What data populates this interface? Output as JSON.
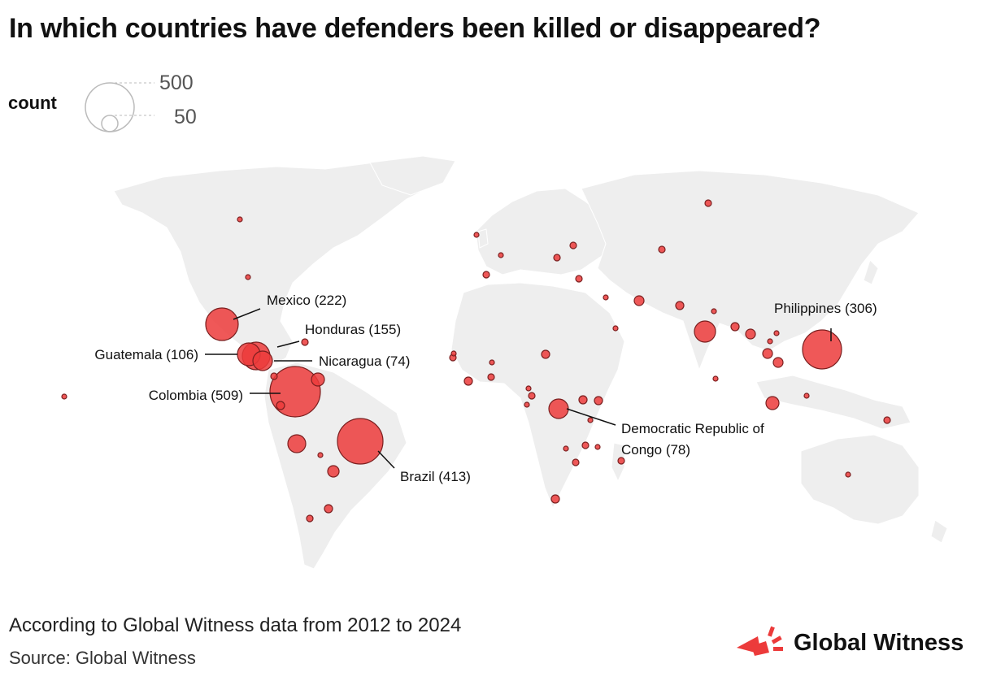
{
  "title": "In which countries have defenders been killed or disappeared?",
  "legend": {
    "label": "count",
    "values": [
      {
        "value": 500,
        "text": "500"
      },
      {
        "value": 50,
        "text": "50"
      }
    ]
  },
  "colors": {
    "bubble_fill": "#ec3b3b",
    "bubble_stroke": "#7a1f1f",
    "land": "#eeeeee",
    "border": "#ffffff",
    "brand_red": "#ec3b3b"
  },
  "map": {
    "projection": "world",
    "labeled_countries": [
      {
        "country": "Mexico",
        "count": 222,
        "label": "Mexico (222)"
      },
      {
        "country": "Honduras",
        "count": 155,
        "label": "Honduras (155)"
      },
      {
        "country": "Guatemala",
        "count": 106,
        "label": "Guatemala (106)"
      },
      {
        "country": "Nicaragua",
        "count": 74,
        "label": "Nicaragua (74)"
      },
      {
        "country": "Colombia",
        "count": 509,
        "label": "Colombia (509)"
      },
      {
        "country": "Brazil",
        "count": 413,
        "label": "Brazil (413)"
      },
      {
        "country": "Democratic Republic of Congo",
        "count": 78,
        "label_lines": [
          "Democratic Republic of",
          "Congo (78)"
        ]
      },
      {
        "country": "Philippines",
        "count": 306,
        "label": "Philippines (306)"
      }
    ]
  },
  "footer": {
    "note": "According to Global Witness data from 2012 to 2024",
    "source": "Source: Global Witness",
    "brand": "Global Witness"
  }
}
